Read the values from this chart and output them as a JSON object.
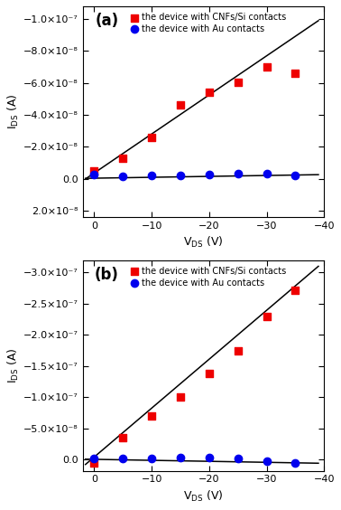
{
  "panel_a": {
    "title": "(a)",
    "xlim": [
      2,
      -40
    ],
    "ylim": [
      2.4e-08,
      -1.08e-07
    ],
    "yticks": [
      2e-08,
      0.0,
      -2e-08,
      -4e-08,
      -6e-08,
      -8e-08,
      -1e-07
    ],
    "xticks": [
      0,
      -10,
      -20,
      -30,
      -40
    ],
    "red_x": [
      0,
      -5,
      -10,
      -15,
      -20,
      -25,
      -30,
      -35
    ],
    "red_y": [
      -5e-09,
      -1.3e-08,
      -2.6e-08,
      -4.6e-08,
      -5.4e-08,
      -6.05e-08,
      -7e-08,
      -6.6e-08
    ],
    "blue_x": [
      0,
      -5,
      -10,
      -15,
      -20,
      -25,
      -30,
      -35
    ],
    "blue_y": [
      -2.5e-09,
      -1.5e-09,
      -2e-09,
      -2e-09,
      -2.5e-09,
      -3e-09,
      -3e-09,
      -2e-09
    ],
    "line_x": [
      1.5,
      -39
    ],
    "line_y": [
      2e-10,
      -9.9e-08
    ],
    "line2_x": [
      1.5,
      -39
    ],
    "line2_y": [
      -2e-10,
      -2.5e-09
    ]
  },
  "panel_b": {
    "title": "(b)",
    "xlim": [
      2,
      -40
    ],
    "ylim": [
      1.8e-08,
      -3.2e-07
    ],
    "yticks": [
      0.0,
      -5e-08,
      -1e-07,
      -1.5e-07,
      -2e-07,
      -2.5e-07,
      -3e-07
    ],
    "xticks": [
      0,
      -10,
      -20,
      -30,
      -40
    ],
    "red_x": [
      0,
      -5,
      -10,
      -15,
      -20,
      -25,
      -30,
      -35
    ],
    "red_y": [
      5e-09,
      -3.5e-08,
      -7e-08,
      -1e-07,
      -1.38e-07,
      -1.75e-07,
      -2.3e-07,
      -2.72e-07
    ],
    "blue_x": [
      0,
      -5,
      -10,
      -15,
      -20,
      -25,
      -30,
      -35
    ],
    "blue_y": [
      -1e-09,
      -2e-09,
      -2e-09,
      -3e-09,
      -3e-09,
      -1e-09,
      2e-09,
      5e-09
    ],
    "line_x": [
      1.5,
      -39
    ],
    "line_y": [
      8e-09,
      -3.1e-07
    ],
    "line2_x": [
      1.5,
      -39
    ],
    "line2_y": [
      -5e-10,
      6e-09
    ]
  },
  "legend_labels": [
    "the device with CNFs/Si contacts",
    "the device with Au contacts"
  ],
  "red_color": "#EE0000",
  "blue_color": "#0000EE",
  "line_color": "black",
  "marker_size_sq": 36,
  "bg_color": "#ffffff"
}
